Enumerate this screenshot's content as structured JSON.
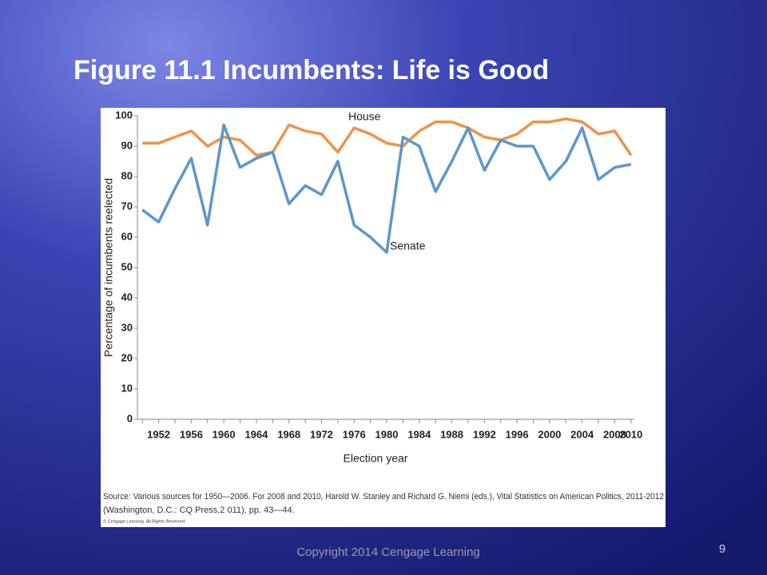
{
  "slide": {
    "title": "Figure 11.1 Incumbents: Life is Good",
    "footer": "Copyright 2014 Cengage Learning",
    "page_number": "9"
  },
  "chart_data": {
    "type": "line",
    "x": [
      1950,
      1952,
      1954,
      1956,
      1958,
      1960,
      1962,
      1964,
      1966,
      1968,
      1970,
      1972,
      1974,
      1976,
      1978,
      1980,
      1982,
      1984,
      1986,
      1988,
      1990,
      1992,
      1994,
      1996,
      1998,
      2000,
      2002,
      2004,
      2006,
      2008,
      2010
    ],
    "series": [
      {
        "name": "House",
        "color": "#f0924a",
        "values": [
          91,
          91,
          93,
          95,
          90,
          93,
          92,
          87,
          88,
          97,
          95,
          94,
          88,
          96,
          94,
          91,
          90,
          95,
          98,
          98,
          96,
          93,
          92,
          94,
          98,
          98,
          99,
          98,
          94,
          95,
          87
        ]
      },
      {
        "name": "Senate",
        "color": "#5b97cc",
        "values": [
          69,
          65,
          76,
          86,
          64,
          97,
          83,
          86,
          88,
          71,
          77,
          74,
          85,
          64,
          60,
          55,
          93,
          90,
          75,
          85,
          96,
          82,
          92,
          90,
          90,
          79,
          85,
          96,
          79,
          83,
          84
        ]
      }
    ],
    "xlim": [
      1949,
      2011
    ],
    "xticks": [
      1952,
      1956,
      1960,
      1964,
      1968,
      1972,
      1976,
      1980,
      1984,
      1988,
      1992,
      1996,
      2000,
      2004,
      2008,
      2010
    ],
    "ylim": [
      0,
      100
    ],
    "yticks": [
      0,
      10,
      20,
      30,
      40,
      50,
      60,
      70,
      80,
      90,
      100
    ],
    "xlabel": "Election year",
    "ylabel": "Percentage of incumbents reelected",
    "source": [
      "Source: Various sources for 1950—2006. For 2008 and 2010, Harold W. Stanley and Richard G. Niemi (eds.), Vital Statistics on American Politics, 2011-2012",
      "(Washington, D.C.: CQ Press,2 011), pp. 43—44."
    ],
    "credit": "© Cengage Learning. All Rights Reserved."
  }
}
